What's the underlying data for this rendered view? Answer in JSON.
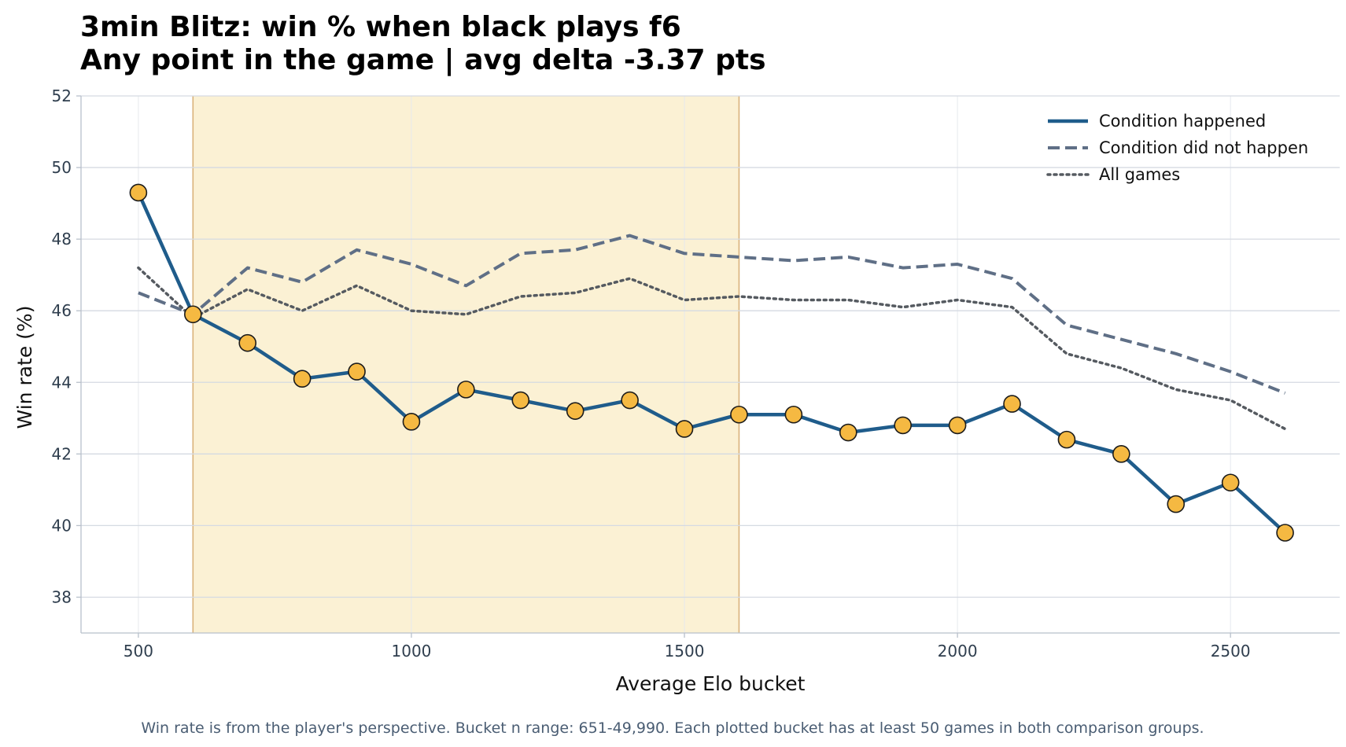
{
  "chart_data": {
    "type": "line",
    "title_line1": "3min Blitz: win % when black plays f6",
    "title_line2": "Any point in the game | avg delta -3.37 pts",
    "xlabel": "Average Elo bucket",
    "ylabel": "Win rate (%)",
    "caption": "Win rate is from the player's perspective. Bucket n range: 651-49,990. Each plotted bucket has at least 50 games in both comparison groups.",
    "xlim": [
      395,
      2700
    ],
    "ylim": [
      37,
      52
    ],
    "x_ticks": [
      500,
      1000,
      1500,
      2000,
      2500
    ],
    "y_ticks": [
      38,
      40,
      42,
      44,
      46,
      48,
      50,
      52
    ],
    "grid": true,
    "legend_position": "top-right",
    "highlight_band": [
      600,
      1600
    ],
    "x": [
      500,
      600,
      700,
      800,
      900,
      1000,
      1100,
      1200,
      1300,
      1400,
      1500,
      1600,
      1700,
      1800,
      1900,
      2000,
      2100,
      2200,
      2300,
      2400,
      2500,
      2600
    ],
    "series": [
      {
        "name": "Condition happened",
        "style": "solid",
        "color": "#1f5c8b",
        "marker_color": "#f5b942",
        "values": [
          49.3,
          45.9,
          45.1,
          44.1,
          44.3,
          42.9,
          43.8,
          43.5,
          43.2,
          43.5,
          42.7,
          43.1,
          43.1,
          42.6,
          42.8,
          42.8,
          43.4,
          42.4,
          42.0,
          40.6,
          41.2,
          39.8
        ]
      },
      {
        "name": "Condition did not happen",
        "style": "dashed",
        "color": "#5f6f86",
        "values": [
          46.5,
          45.9,
          47.2,
          46.8,
          47.7,
          47.3,
          46.7,
          47.6,
          47.7,
          48.1,
          47.6,
          47.5,
          47.4,
          47.5,
          47.2,
          47.3,
          46.9,
          45.6,
          45.2,
          44.8,
          44.3,
          43.7
        ]
      },
      {
        "name": "All games",
        "style": "dotted",
        "color": "#555a60",
        "values": [
          47.2,
          45.8,
          46.6,
          46.0,
          46.7,
          46.0,
          45.9,
          46.4,
          46.5,
          46.9,
          46.3,
          46.4,
          46.3,
          46.3,
          46.1,
          46.3,
          46.1,
          44.8,
          44.4,
          43.8,
          43.5,
          42.7
        ]
      }
    ]
  },
  "colors": {
    "band_fill": "#fbf1d4",
    "band_edge": "#d9b27a",
    "grid": "#d5dae2",
    "axis": "#b8c0cb"
  }
}
